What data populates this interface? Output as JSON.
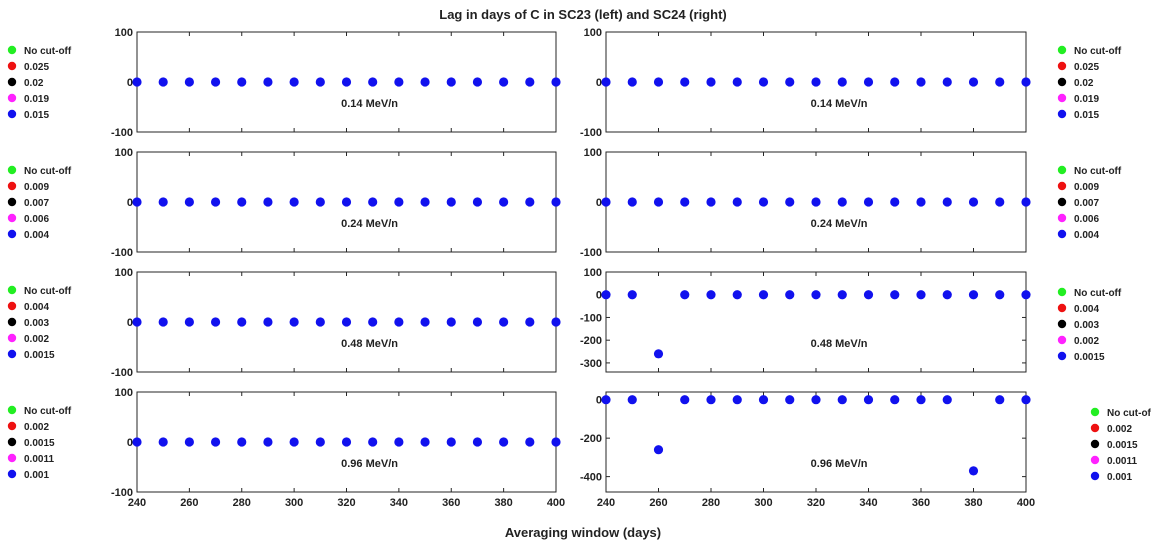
{
  "figure": {
    "title": "Lag in days of C in SC23 (left) and SC24 (right)",
    "xlabel": "Averaging window (days)"
  },
  "colors": {
    "No cut-off": "#22ee22",
    "level1": "#ee1111",
    "level2": "#000000",
    "level3": "#ff22ff",
    "level4": "#1111ee"
  },
  "chart_data": [
    {
      "type": "scatter",
      "panel": "SC23",
      "row": 1,
      "annotation": "0.14 MeV/n",
      "xlim": [
        240,
        400
      ],
      "ylim": [
        -100,
        100
      ],
      "yticks": [
        -100,
        0,
        100
      ],
      "xticks": [
        240,
        260,
        280,
        300,
        320,
        340,
        360,
        380,
        400
      ],
      "legend_entries": [
        "No cut-off",
        "0.025",
        "0.02",
        "0.019",
        "0.015"
      ],
      "legend_placement": "outside-left",
      "x": [
        240,
        250,
        260,
        270,
        280,
        290,
        300,
        310,
        320,
        330,
        340,
        350,
        360,
        370,
        380,
        390,
        400
      ],
      "y": [
        0,
        0,
        0,
        0,
        0,
        0,
        0,
        0,
        0,
        0,
        0,
        0,
        0,
        0,
        0,
        0,
        0
      ]
    },
    {
      "type": "scatter",
      "panel": "SC24",
      "row": 1,
      "annotation": "0.14 MeV/n",
      "xlim": [
        240,
        400
      ],
      "ylim": [
        -100,
        100
      ],
      "yticks": [
        -100,
        0,
        100
      ],
      "xticks": [
        240,
        260,
        280,
        300,
        320,
        340,
        360,
        380,
        400
      ],
      "legend_entries": [
        "No cut-off",
        "0.025",
        "0.02",
        "0.019",
        "0.015"
      ],
      "legend_placement": "outside-right",
      "x": [
        240,
        250,
        260,
        270,
        280,
        290,
        300,
        310,
        320,
        330,
        340,
        350,
        360,
        370,
        380,
        390,
        400
      ],
      "y": [
        0,
        0,
        0,
        0,
        0,
        0,
        0,
        0,
        0,
        0,
        0,
        0,
        0,
        0,
        0,
        0,
        0
      ]
    },
    {
      "type": "scatter",
      "panel": "SC23",
      "row": 2,
      "annotation": "0.24 MeV/n",
      "xlim": [
        240,
        400
      ],
      "ylim": [
        -100,
        100
      ],
      "yticks": [
        -100,
        0,
        100
      ],
      "xticks": [
        240,
        260,
        280,
        300,
        320,
        340,
        360,
        380,
        400
      ],
      "legend_entries": [
        "No cut-off",
        "0.009",
        "0.007",
        "0.006",
        "0.004"
      ],
      "legend_placement": "outside-left",
      "x": [
        240,
        250,
        260,
        270,
        280,
        290,
        300,
        310,
        320,
        330,
        340,
        350,
        360,
        370,
        380,
        390,
        400
      ],
      "y": [
        0,
        0,
        0,
        0,
        0,
        0,
        0,
        0,
        0,
        0,
        0,
        0,
        0,
        0,
        0,
        0,
        0
      ]
    },
    {
      "type": "scatter",
      "panel": "SC24",
      "row": 2,
      "annotation": "0.24 MeV/n",
      "xlim": [
        240,
        400
      ],
      "ylim": [
        -100,
        100
      ],
      "yticks": [
        -100,
        0,
        100
      ],
      "xticks": [
        240,
        260,
        280,
        300,
        320,
        340,
        360,
        380,
        400
      ],
      "legend_entries": [
        "No cut-off",
        "0.009",
        "0.007",
        "0.006",
        "0.004"
      ],
      "legend_placement": "outside-right",
      "x": [
        240,
        250,
        260,
        270,
        280,
        290,
        300,
        310,
        320,
        330,
        340,
        350,
        360,
        370,
        380,
        390,
        400
      ],
      "y": [
        0,
        0,
        0,
        0,
        0,
        0,
        0,
        0,
        0,
        0,
        0,
        0,
        0,
        0,
        0,
        0,
        0
      ]
    },
    {
      "type": "scatter",
      "panel": "SC23",
      "row": 3,
      "annotation": "0.48 MeV/n",
      "xlim": [
        240,
        400
      ],
      "ylim": [
        -100,
        100
      ],
      "yticks": [
        -100,
        0,
        100
      ],
      "xticks": [
        240,
        260,
        280,
        300,
        320,
        340,
        360,
        380,
        400
      ],
      "legend_entries": [
        "No cut-off",
        "0.004",
        "0.003",
        "0.002",
        "0.0015"
      ],
      "legend_placement": "outside-left",
      "x": [
        240,
        250,
        260,
        270,
        280,
        290,
        300,
        310,
        320,
        330,
        340,
        350,
        360,
        370,
        380,
        390,
        400
      ],
      "y": [
        0,
        0,
        0,
        0,
        0,
        0,
        0,
        0,
        0,
        0,
        0,
        0,
        0,
        0,
        0,
        0,
        0
      ]
    },
    {
      "type": "scatter",
      "panel": "SC24",
      "row": 3,
      "annotation": "0.48 MeV/n",
      "xlim": [
        240,
        400
      ],
      "ylim": [
        -340,
        100
      ],
      "yticks": [
        -300,
        -200,
        -100,
        0,
        100
      ],
      "xticks": [
        240,
        260,
        280,
        300,
        320,
        340,
        360,
        380,
        400
      ],
      "legend_entries": [
        "No cut-off",
        "0.004",
        "0.003",
        "0.002",
        "0.0015"
      ],
      "legend_placement": "outside-right",
      "x": [
        240,
        250,
        260,
        270,
        280,
        290,
        300,
        310,
        320,
        330,
        340,
        350,
        360,
        370,
        380,
        390,
        400
      ],
      "y": [
        0,
        0,
        -260,
        0,
        0,
        0,
        0,
        0,
        0,
        0,
        0,
        0,
        0,
        0,
        0,
        0,
        0
      ]
    },
    {
      "type": "scatter",
      "panel": "SC23",
      "row": 4,
      "annotation": "0.96 MeV/n",
      "xlim": [
        240,
        400
      ],
      "ylim": [
        -100,
        100
      ],
      "yticks": [
        -100,
        0,
        100
      ],
      "xticks": [
        240,
        260,
        280,
        300,
        320,
        340,
        360,
        380,
        400
      ],
      "legend_entries": [
        "No cut-off",
        "0.002",
        "0.0015",
        "0.0011",
        "0.001"
      ],
      "legend_placement": "outside-left",
      "x": [
        240,
        250,
        260,
        270,
        280,
        290,
        300,
        310,
        320,
        330,
        340,
        350,
        360,
        370,
        380,
        390,
        400
      ],
      "y": [
        0,
        0,
        0,
        0,
        0,
        0,
        0,
        0,
        0,
        0,
        0,
        0,
        0,
        0,
        0,
        0,
        0
      ]
    },
    {
      "type": "scatter",
      "panel": "SC24",
      "row": 4,
      "annotation": "0.96 MeV/n",
      "xlim": [
        240,
        400
      ],
      "ylim": [
        -480,
        40
      ],
      "yticks": [
        -400,
        -200,
        0
      ],
      "xticks": [
        240,
        260,
        280,
        300,
        320,
        340,
        360,
        380,
        400
      ],
      "legend_entries": [
        "No cut-off",
        "0.002",
        "0.0015",
        "0.0011",
        "0.001"
      ],
      "legend_placement": "outside-right",
      "x": [
        240,
        250,
        260,
        270,
        280,
        290,
        300,
        310,
        320,
        330,
        340,
        350,
        360,
        370,
        380,
        390,
        400
      ],
      "y": [
        0,
        0,
        -260,
        0,
        0,
        0,
        0,
        0,
        0,
        0,
        0,
        0,
        0,
        0,
        -370,
        0,
        0
      ]
    }
  ]
}
